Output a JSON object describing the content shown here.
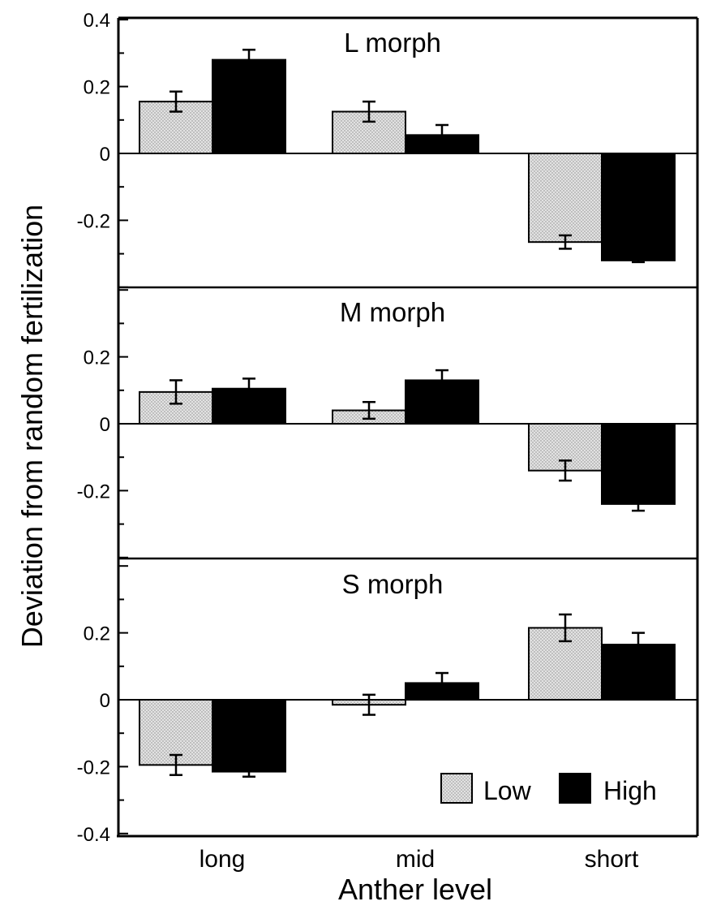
{
  "chart_data": {
    "type": "bar",
    "xlabel": "Anther level",
    "ylabel": "Deviation from random fertilization",
    "categories": [
      "long",
      "mid",
      "short"
    ],
    "ylim": [
      -0.4,
      0.4
    ],
    "y_ticks": [
      {
        "value": 0.4,
        "label": "0.4"
      },
      {
        "value": 0.2,
        "label": "0.2"
      },
      {
        "value": 0,
        "label": "0"
      },
      {
        "value": -0.2,
        "label": "-0.2"
      },
      {
        "value": -0.4,
        "label": "-0.4"
      }
    ],
    "legend": {
      "position": "bottom-right",
      "entries": [
        {
          "name": "Low",
          "fill": "stippled-light-gray"
        },
        {
          "name": "High",
          "fill": "black"
        }
      ]
    },
    "colors": {
      "low": "#d9d9d9",
      "high": "#000000",
      "axis": "#000000"
    },
    "panels": [
      {
        "title": "L morph",
        "series": [
          {
            "name": "Low",
            "values": [
              0.155,
              0.125,
              -0.265
            ],
            "errors": [
              0.03,
              0.03,
              0.02
            ]
          },
          {
            "name": "High",
            "values": [
              0.28,
              0.055,
              -0.32
            ],
            "errors": [
              0.03,
              0.03,
              0.005
            ]
          }
        ]
      },
      {
        "title": "M morph",
        "series": [
          {
            "name": "Low",
            "values": [
              0.095,
              0.04,
              -0.14
            ],
            "errors": [
              0.035,
              0.025,
              0.03
            ]
          },
          {
            "name": "High",
            "values": [
              0.105,
              0.13,
              -0.24
            ],
            "errors": [
              0.03,
              0.03,
              0.02
            ]
          }
        ]
      },
      {
        "title": "S morph",
        "series": [
          {
            "name": "Low",
            "values": [
              -0.195,
              -0.015,
              0.215
            ],
            "errors": [
              0.03,
              0.03,
              0.04
            ]
          },
          {
            "name": "High",
            "values": [
              -0.215,
              0.05,
              0.165
            ],
            "errors": [
              0.015,
              0.03,
              0.035
            ]
          }
        ]
      }
    ]
  }
}
